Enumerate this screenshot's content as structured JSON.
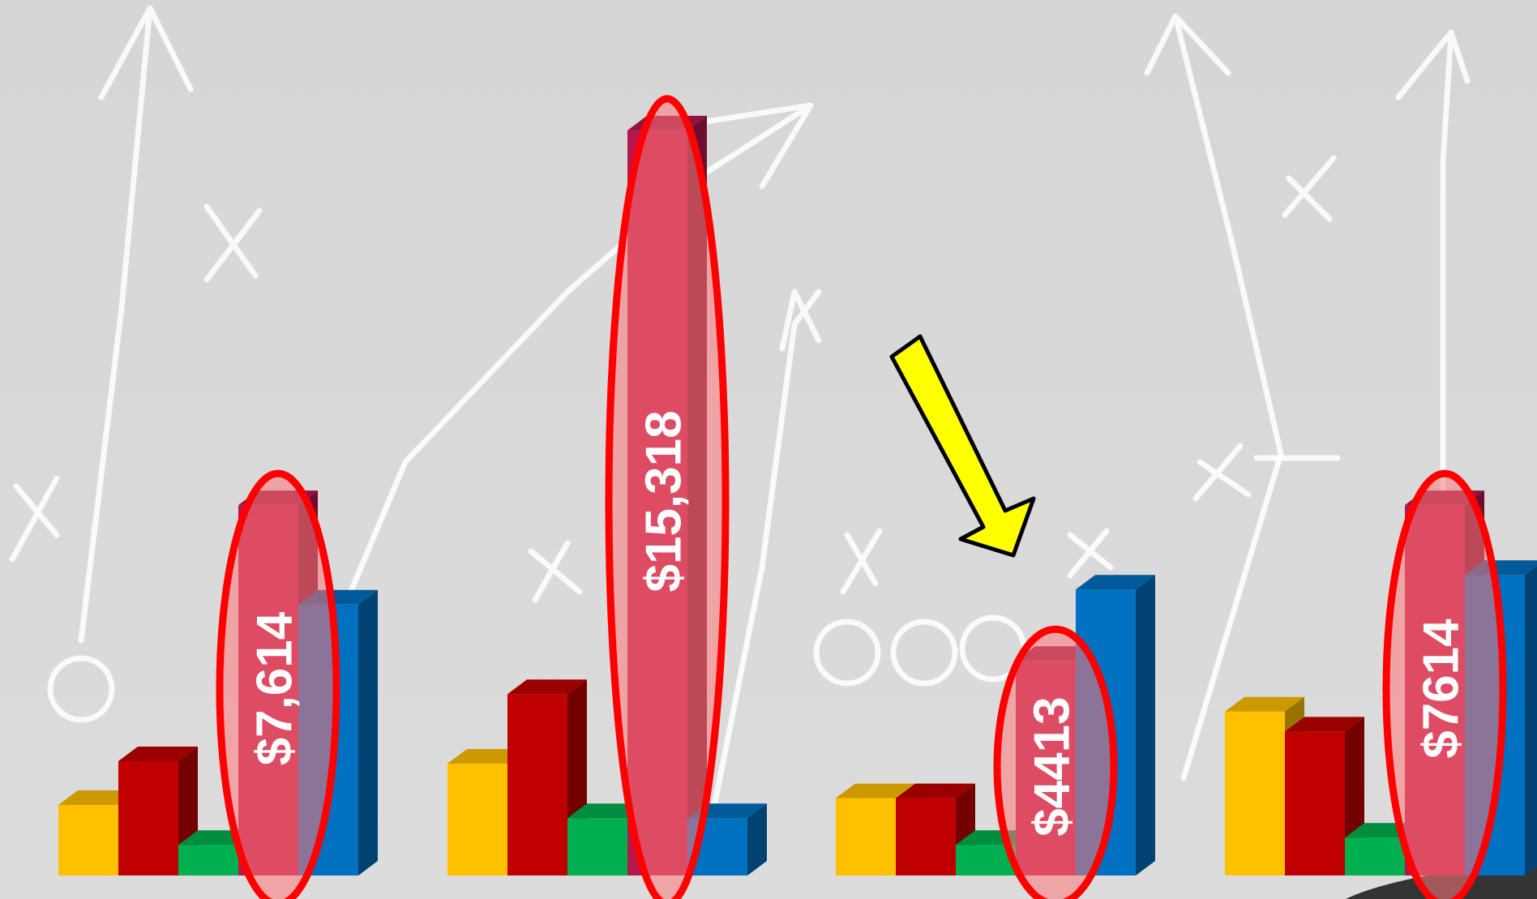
{
  "chart_data": {
    "type": "bar3d",
    "categories": [
      null,
      null,
      null,
      null
    ],
    "ylim": [
      0,
      18000
    ],
    "series": [
      {
        "color": "#ffc000",
        "values": [
          1450,
          2300,
          1590,
          3370
        ]
      },
      {
        "color": "#c00000",
        "values": [
          2350,
          3730,
          1590,
          2960
        ]
      },
      {
        "color": "#00b050",
        "values": [
          630,
          1180,
          630,
          780
        ]
      },
      {
        "color": "#b5174d",
        "values": [
          7614,
          15318,
          4413,
          7614
        ],
        "value_labels": [
          "$7,614",
          "$15,318",
          "$4413",
          "$7614"
        ]
      },
      {
        "color": "#0070c0",
        "values": [
          5570,
          1180,
          5880,
          6180
        ]
      }
    ],
    "highlight_series": 3,
    "highlight_color": "#ff0000"
  }
}
